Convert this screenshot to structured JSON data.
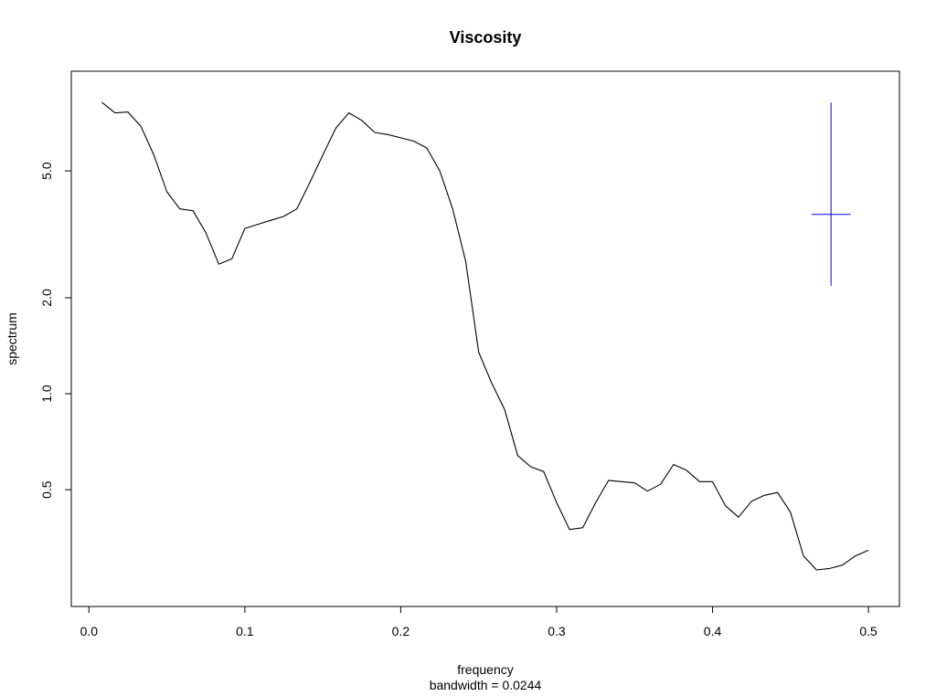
{
  "chart_data": {
    "type": "line",
    "title": "Viscosity",
    "xlabel": "frequency",
    "sublabel": "bandwidth = 0.0244",
    "ylabel": "spectrum",
    "y_scale": "log",
    "xlim": [
      0.0,
      0.5
    ],
    "ylim": [
      0.25,
      8.9
    ],
    "x_ticks": [
      0.0,
      0.1,
      0.2,
      0.3,
      0.4,
      0.5
    ],
    "x_tick_labels": [
      "0.0",
      "0.1",
      "0.2",
      "0.3",
      "0.4",
      "0.5"
    ],
    "y_ticks": [
      0.5,
      1.0,
      2.0,
      5.0
    ],
    "y_tick_labels": [
      "0.5",
      "1.0",
      "2.0",
      "5.0"
    ],
    "grid": false,
    "series": [
      {
        "color": "#000000",
        "x": [
          0.0083,
          0.0167,
          0.025,
          0.0333,
          0.0417,
          0.05,
          0.0583,
          0.0667,
          0.075,
          0.0833,
          0.0917,
          0.1,
          0.1083,
          0.1167,
          0.125,
          0.1333,
          0.1417,
          0.15,
          0.1583,
          0.1667,
          0.175,
          0.1833,
          0.1917,
          0.2,
          0.2083,
          0.2167,
          0.225,
          0.2333,
          0.2417,
          0.25,
          0.2583,
          0.2667,
          0.275,
          0.2833,
          0.2917,
          0.3,
          0.3083,
          0.3167,
          0.325,
          0.3333,
          0.3417,
          0.35,
          0.3583,
          0.3667,
          0.375,
          0.3833,
          0.3917,
          0.4,
          0.4083,
          0.4167,
          0.425,
          0.4333,
          0.4417,
          0.45,
          0.4583,
          0.4667,
          0.475,
          0.4833,
          0.4917,
          0.5
        ],
        "y": [
          8.2,
          7.6,
          7.65,
          6.9,
          5.6,
          4.3,
          3.8,
          3.75,
          3.2,
          2.55,
          2.65,
          3.3,
          3.4,
          3.5,
          3.6,
          3.8,
          4.6,
          5.6,
          6.8,
          7.6,
          7.2,
          6.6,
          6.5,
          6.35,
          6.2,
          5.9,
          5.0,
          3.8,
          2.6,
          1.35,
          1.08,
          0.89,
          0.64,
          0.59,
          0.57,
          0.455,
          0.375,
          0.38,
          0.455,
          0.535,
          0.53,
          0.525,
          0.495,
          0.52,
          0.6,
          0.575,
          0.53,
          0.53,
          0.445,
          0.41,
          0.46,
          0.48,
          0.49,
          0.425,
          0.31,
          0.28,
          0.283,
          0.29,
          0.31,
          0.323
        ]
      }
    ],
    "ci_marker": {
      "color": "#0000ff",
      "x": 0.476,
      "y_center": 3.65,
      "y_low": 2.18,
      "y_high": 8.2,
      "half_width": 0.0125
    }
  }
}
